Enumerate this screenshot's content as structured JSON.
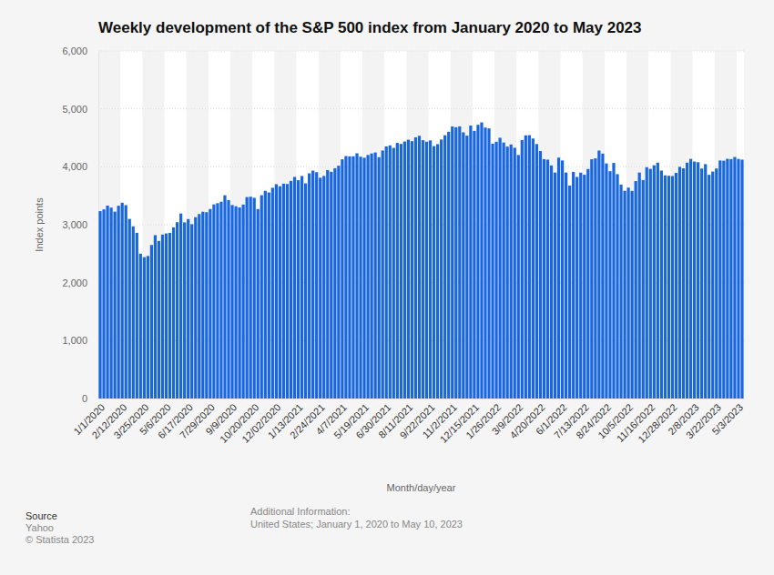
{
  "chart_data": {
    "type": "bar",
    "title": "Weekly development of the S&P 500 index from January 2020 to May 2023",
    "x_label": "Month/day/year",
    "y_label": "Index points",
    "categories": [
      "1/1/2020",
      null,
      null,
      null,
      null,
      null,
      "2/12/2020",
      null,
      null,
      null,
      null,
      null,
      "3/25/2020",
      null,
      null,
      null,
      null,
      null,
      "5/6/2020",
      null,
      null,
      null,
      null,
      null,
      "6/17/2020",
      null,
      null,
      null,
      null,
      null,
      "7/29/2020",
      null,
      null,
      null,
      null,
      null,
      "9/9/2020",
      null,
      null,
      null,
      null,
      null,
      "10/20/2020",
      null,
      null,
      null,
      null,
      null,
      "12/02/2020",
      null,
      null,
      null,
      null,
      null,
      "1/13/2021",
      null,
      null,
      null,
      null,
      null,
      "2/24/2021",
      null,
      null,
      null,
      null,
      null,
      "4/7/2021",
      null,
      null,
      null,
      null,
      null,
      "5/19/2021",
      null,
      null,
      null,
      null,
      null,
      "6/30/2021",
      null,
      null,
      null,
      null,
      null,
      "8/11/2021",
      null,
      null,
      null,
      null,
      null,
      "9/22/2021",
      null,
      null,
      null,
      null,
      null,
      "11/2/2021",
      null,
      null,
      null,
      null,
      null,
      "12/15/2021",
      null,
      null,
      null,
      null,
      null,
      "1/26/2022",
      null,
      null,
      null,
      null,
      null,
      "3/9/2022",
      null,
      null,
      null,
      null,
      null,
      "4/20/2022",
      null,
      null,
      null,
      null,
      null,
      "6/1/2022",
      null,
      null,
      null,
      null,
      null,
      "7/13/2022",
      null,
      null,
      null,
      null,
      null,
      "8/24/2022",
      null,
      null,
      null,
      null,
      null,
      "10/5/2022",
      null,
      null,
      null,
      null,
      null,
      "11/16/2022",
      null,
      null,
      null,
      null,
      null,
      "12/28/2022",
      null,
      null,
      null,
      null,
      null,
      "2/8/2023",
      null,
      null,
      null,
      null,
      null,
      "3/22/2023",
      null,
      null,
      null,
      null,
      null,
      "5/3/2023",
      null
    ],
    "values": [
      3235,
      3265,
      3330,
      3295,
      3226,
      3328,
      3380,
      3338,
      3100,
      2972,
      2860,
      2500,
      2440,
      2460,
      2650,
      2820,
      2720,
      2830,
      2850,
      2860,
      2955,
      3044,
      3194,
      3041,
      3098,
      3009,
      3130,
      3185,
      3224,
      3216,
      3271,
      3351,
      3372,
      3397,
      3508,
      3426,
      3340,
      3319,
      3298,
      3348,
      3477,
      3483,
      3465,
      3270,
      3509,
      3585,
      3557,
      3638,
      3699,
      3663,
      3709,
      3703,
      3756,
      3825,
      3768,
      3841,
      3714,
      3887,
      3934,
      3907,
      3811,
      3842,
      3943,
      3913,
      3975,
      4019,
      4129,
      4185,
      4180,
      4181,
      4233,
      4174,
      4156,
      4204,
      4230,
      4247,
      4166,
      4281,
      4352,
      4370,
      4327,
      4412,
      4395,
      4437,
      4468,
      4442,
      4509,
      4535,
      4459,
      4433,
      4455,
      4357,
      4391,
      4471,
      4545,
      4605,
      4697,
      4683,
      4698,
      4595,
      4538,
      4712,
      4620,
      4725,
      4766,
      4677,
      4663,
      4398,
      4432,
      4501,
      4419,
      4349,
      4385,
      4329,
      4204,
      4463,
      4543,
      4546,
      4488,
      4393,
      4272,
      4132,
      4123,
      4023,
      3901,
      4158,
      4109,
      3901,
      3675,
      3912,
      3825,
      3899,
      3863,
      3962,
      4130,
      4145,
      4280,
      4228,
      4058,
      3924,
      4067,
      3873,
      3693,
      3586,
      3640,
      3583,
      3753,
      3901,
      3771,
      3993,
      3965,
      4026,
      4072,
      3934,
      3852,
      3845,
      3840,
      3895,
      3999,
      3973,
      4071,
      4136,
      4090,
      4079,
      3970,
      4046,
      3862,
      3917,
      3971,
      4109,
      4105,
      4138,
      4133,
      4169,
      4136,
      4124
    ],
    "color": "#1866e0",
    "ylim": [
      0,
      6000
    ],
    "yticks": [
      0,
      {
        "value": 1000,
        "label": "1,000"
      },
      {
        "value": 2000,
        "label": "2,000"
      },
      {
        "value": 3000,
        "label": "3,000"
      },
      {
        "value": 4000,
        "label": "4,000"
      },
      {
        "value": 5000,
        "label": "5,000"
      },
      {
        "value": 6000,
        "label": "6,000"
      }
    ],
    "grid": true,
    "source": {
      "heading": "Source",
      "text": "Yahoo",
      "copyright": "© Statista 2023"
    },
    "additional_info": {
      "heading": "Additional Information:",
      "text": "United States; January 1, 2020 to May 10, 2023"
    }
  }
}
